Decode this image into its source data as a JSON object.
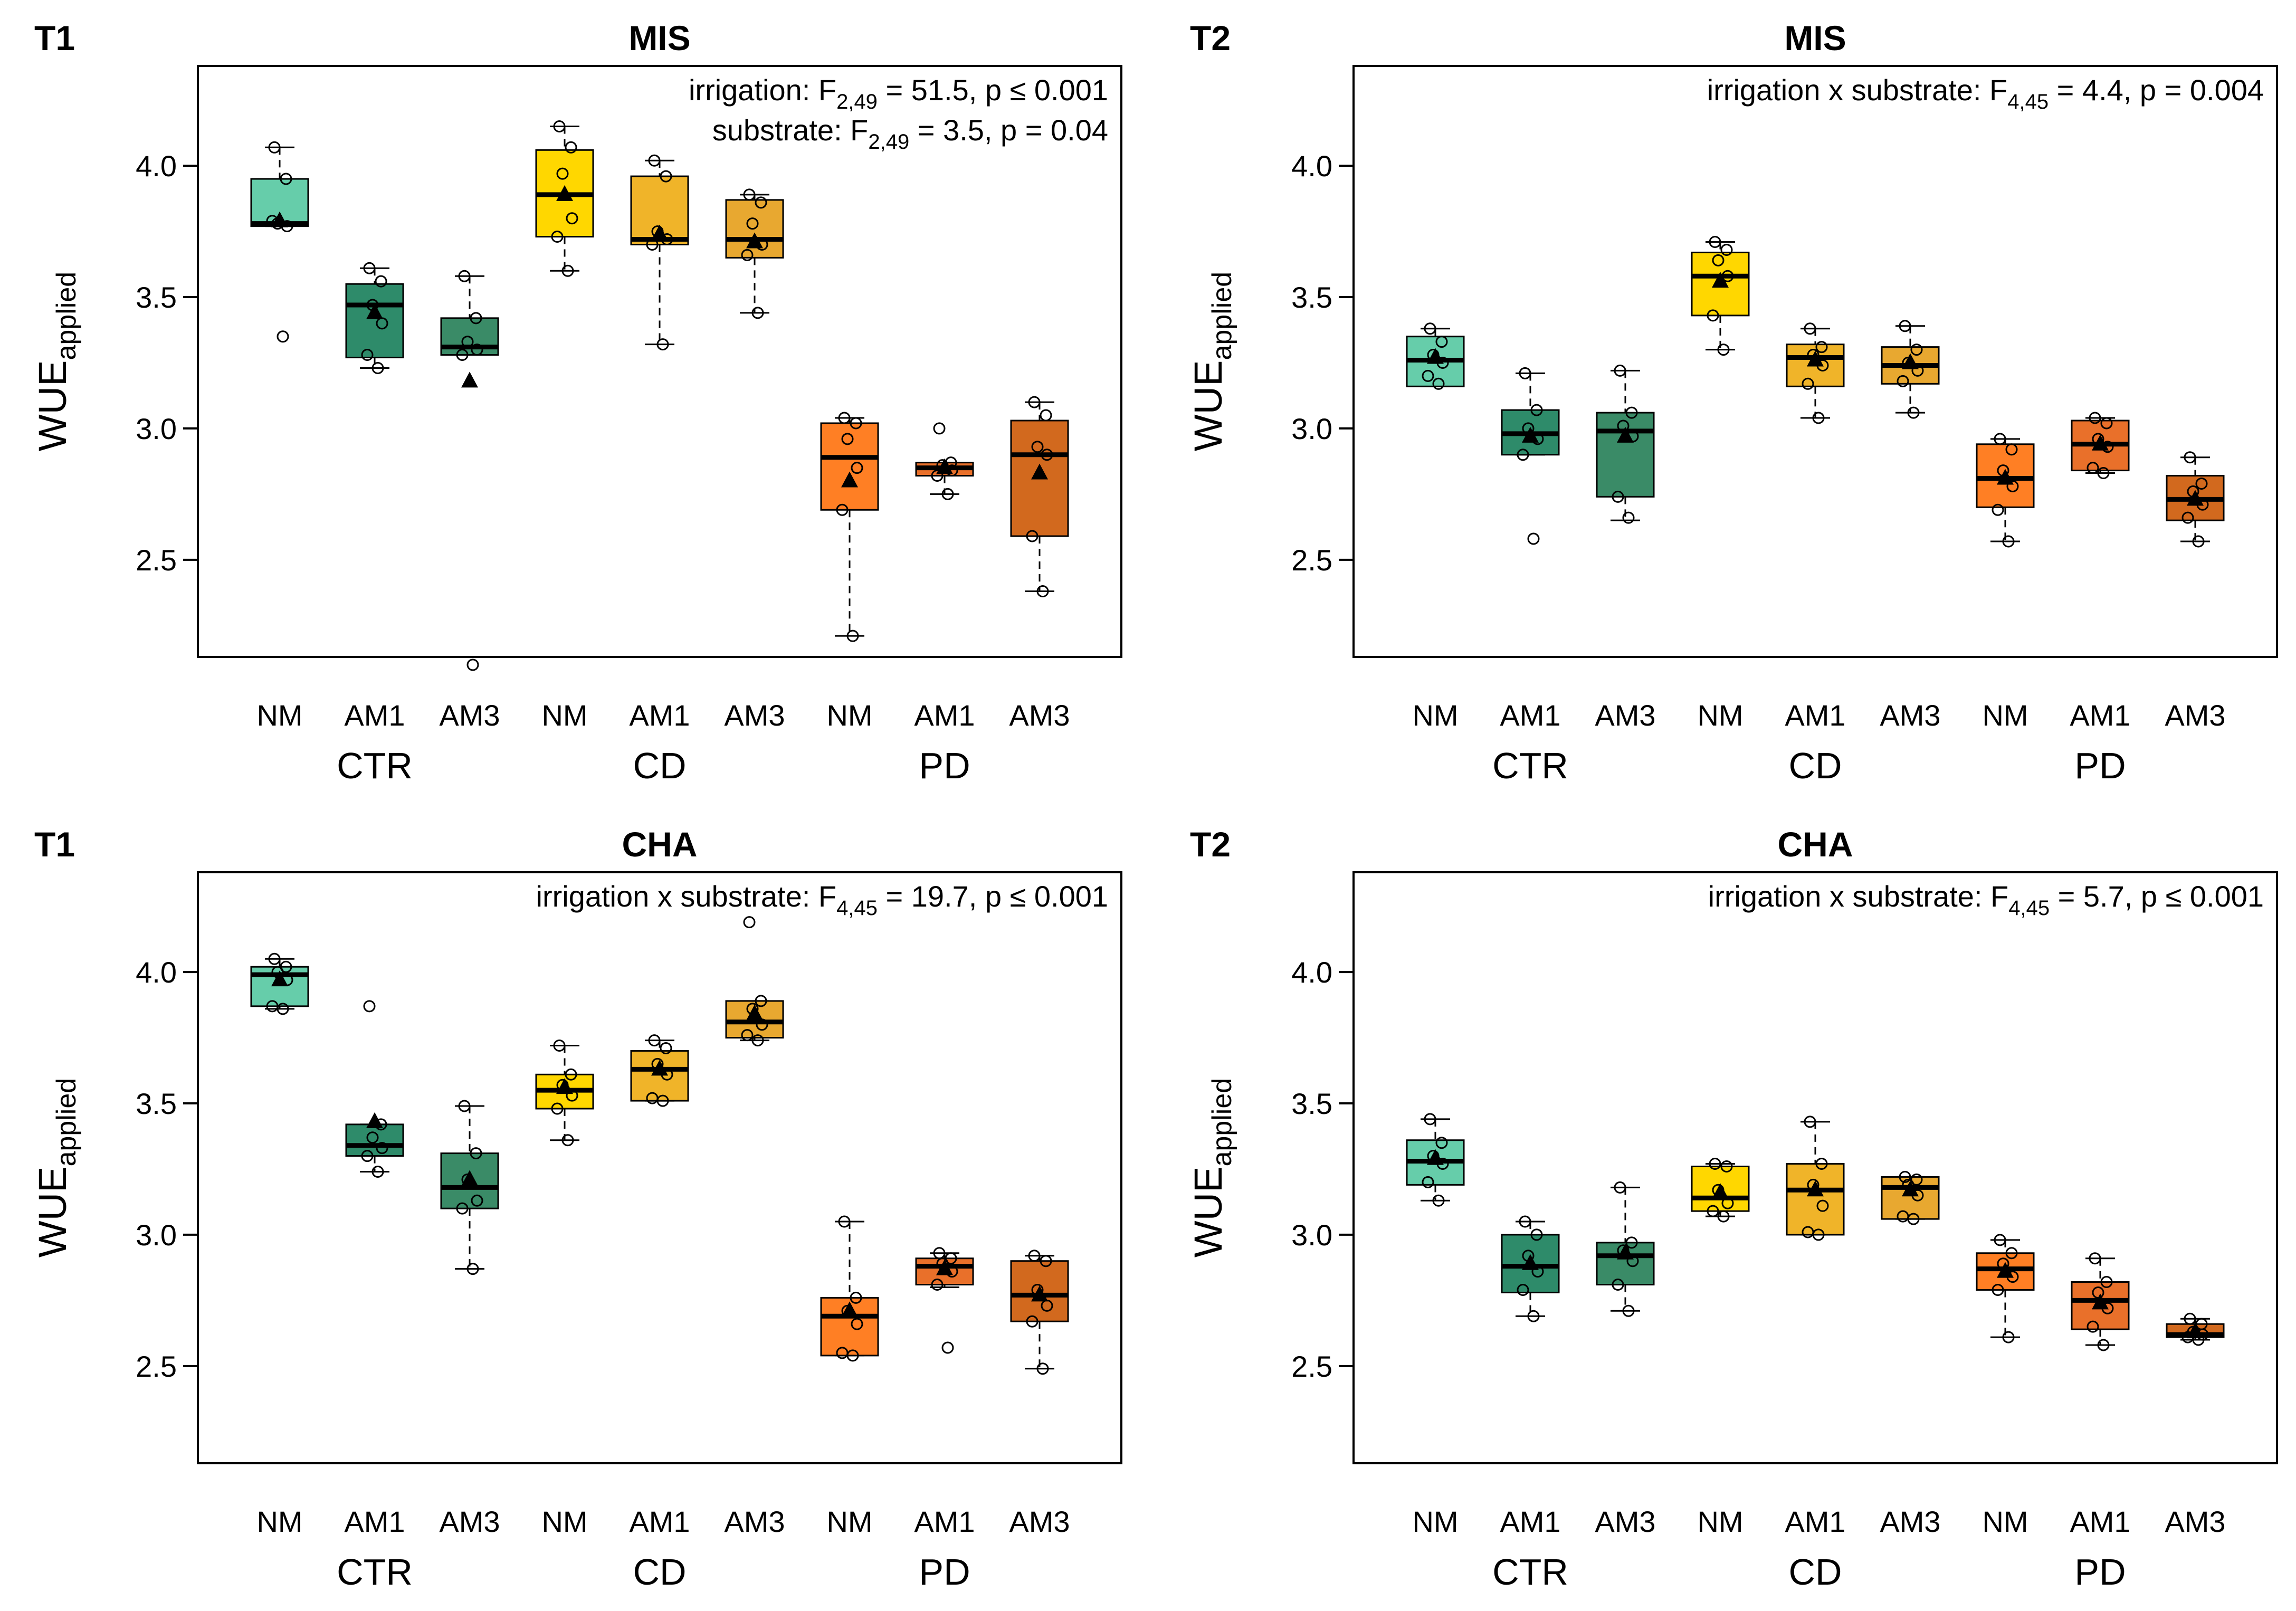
{
  "figure": {
    "ylabel_main": "WUE",
    "ylabel_sub": "applied",
    "x_categories": [
      "NM",
      "AM1",
      "AM3",
      "NM",
      "AM1",
      "AM3",
      "NM",
      "AM1",
      "AM3"
    ],
    "x_groups": [
      "CTR",
      "CD",
      "PD"
    ],
    "yticks": [
      "2.5",
      "3.0",
      "3.5",
      "4.0"
    ],
    "colors": [
      "#66CDAA",
      "#2E8B6A",
      "#3A8B67",
      "#FFD700",
      "#F0B429",
      "#E8A830",
      "#FF7F24",
      "#E9702A",
      "#D2691E"
    ]
  },
  "chart_data": [
    {
      "type": "box",
      "time": "T1",
      "title": "MIS",
      "annotations": [
        {
          "pre": "irrigation: F",
          "sub": "2,49",
          "post": " = 51.5, p ≤ 0.001"
        },
        {
          "pre": "substrate: F",
          "sub": "2,49",
          "post": " = 3.5, p = 0.04"
        }
      ],
      "ylim": [
        2.13,
        4.38
      ],
      "boxes": [
        {
          "group": "CTR",
          "substrate": "NM",
          "min": 3.77,
          "q1": 3.77,
          "median": 3.78,
          "q3": 3.95,
          "max": 4.07,
          "mean": 3.79,
          "points": [
            4.07,
            3.95,
            3.78,
            3.77,
            3.79,
            3.35
          ]
        },
        {
          "group": "CTR",
          "substrate": "AM1",
          "min": 3.23,
          "q1": 3.27,
          "median": 3.47,
          "q3": 3.55,
          "max": 3.61,
          "mean": 3.44,
          "points": [
            3.61,
            3.56,
            3.47,
            3.4,
            3.28,
            3.23
          ]
        },
        {
          "group": "CTR",
          "substrate": "AM3",
          "min": 3.28,
          "q1": 3.28,
          "median": 3.31,
          "q3": 3.42,
          "max": 3.58,
          "mean": 3.18,
          "points": [
            3.58,
            3.42,
            3.33,
            3.3,
            3.28,
            2.1
          ]
        },
        {
          "group": "CD",
          "substrate": "NM",
          "min": 3.6,
          "q1": 3.73,
          "median": 3.89,
          "q3": 4.06,
          "max": 4.15,
          "mean": 3.89,
          "points": [
            4.15,
            4.07,
            3.97,
            3.8,
            3.73,
            3.6
          ]
        },
        {
          "group": "CD",
          "substrate": "AM1",
          "min": 3.32,
          "q1": 3.7,
          "median": 3.72,
          "q3": 3.96,
          "max": 4.02,
          "mean": 3.74,
          "points": [
            4.02,
            3.96,
            3.75,
            3.72,
            3.7,
            3.32
          ]
        },
        {
          "group": "CD",
          "substrate": "AM3",
          "min": 3.44,
          "q1": 3.65,
          "median": 3.72,
          "q3": 3.87,
          "max": 3.89,
          "mean": 3.71,
          "points": [
            3.89,
            3.86,
            3.78,
            3.7,
            3.66,
            3.44
          ]
        },
        {
          "group": "PD",
          "substrate": "NM",
          "min": 2.21,
          "q1": 2.69,
          "median": 2.89,
          "q3": 3.02,
          "max": 3.04,
          "mean": 2.8,
          "points": [
            3.04,
            3.02,
            2.96,
            2.85,
            2.69,
            2.21
          ]
        },
        {
          "group": "PD",
          "substrate": "AM1",
          "min": 2.75,
          "q1": 2.82,
          "median": 2.85,
          "q3": 2.87,
          "max": 2.87,
          "mean": 2.85,
          "points": [
            3.0,
            2.87,
            2.86,
            2.84,
            2.82,
            2.75
          ]
        },
        {
          "group": "PD",
          "substrate": "AM3",
          "min": 2.38,
          "q1": 2.59,
          "median": 2.9,
          "q3": 3.03,
          "max": 3.1,
          "mean": 2.83,
          "points": [
            3.1,
            3.05,
            2.93,
            2.9,
            2.59,
            2.38
          ]
        }
      ]
    },
    {
      "type": "box",
      "time": "T2",
      "title": "MIS",
      "annotations": [
        {
          "pre": "irrigation x substrate: F",
          "sub": "4,45",
          "post": " = 4.4, p = 0.004"
        }
      ],
      "ylim": [
        2.13,
        4.38
      ],
      "boxes": [
        {
          "group": "CTR",
          "substrate": "NM",
          "min": 3.16,
          "q1": 3.16,
          "median": 3.26,
          "q3": 3.35,
          "max": 3.38,
          "mean": 3.27,
          "points": [
            3.38,
            3.33,
            3.28,
            3.25,
            3.2,
            3.17
          ]
        },
        {
          "group": "CTR",
          "substrate": "AM1",
          "min": 2.9,
          "q1": 2.9,
          "median": 2.98,
          "q3": 3.07,
          "max": 3.21,
          "mean": 2.97,
          "points": [
            3.21,
            3.07,
            3.0,
            2.96,
            2.9,
            2.58
          ]
        },
        {
          "group": "CTR",
          "substrate": "AM3",
          "min": 2.65,
          "q1": 2.74,
          "median": 2.99,
          "q3": 3.06,
          "max": 3.22,
          "mean": 2.97,
          "points": [
            3.22,
            3.06,
            3.01,
            2.97,
            2.74,
            2.66
          ]
        },
        {
          "group": "CD",
          "substrate": "NM",
          "min": 3.3,
          "q1": 3.43,
          "median": 3.58,
          "q3": 3.67,
          "max": 3.71,
          "mean": 3.56,
          "points": [
            3.71,
            3.68,
            3.64,
            3.58,
            3.43,
            3.3
          ]
        },
        {
          "group": "CD",
          "substrate": "AM1",
          "min": 3.04,
          "q1": 3.16,
          "median": 3.27,
          "q3": 3.32,
          "max": 3.38,
          "mean": 3.26,
          "points": [
            3.38,
            3.31,
            3.28,
            3.24,
            3.17,
            3.04
          ]
        },
        {
          "group": "CD",
          "substrate": "AM3",
          "min": 3.06,
          "q1": 3.17,
          "median": 3.24,
          "q3": 3.31,
          "max": 3.39,
          "mean": 3.25,
          "points": [
            3.39,
            3.3,
            3.25,
            3.22,
            3.18,
            3.06
          ]
        },
        {
          "group": "PD",
          "substrate": "NM",
          "min": 2.57,
          "q1": 2.7,
          "median": 2.81,
          "q3": 2.94,
          "max": 2.96,
          "mean": 2.81,
          "points": [
            2.96,
            2.92,
            2.84,
            2.78,
            2.69,
            2.57
          ]
        },
        {
          "group": "PD",
          "substrate": "AM1",
          "min": 2.83,
          "q1": 2.84,
          "median": 2.94,
          "q3": 3.03,
          "max": 3.04,
          "mean": 2.94,
          "points": [
            3.04,
            3.02,
            2.96,
            2.93,
            2.85,
            2.83
          ]
        },
        {
          "group": "PD",
          "substrate": "AM3",
          "min": 2.57,
          "q1": 2.65,
          "median": 2.73,
          "q3": 2.82,
          "max": 2.89,
          "mean": 2.73,
          "points": [
            2.89,
            2.79,
            2.76,
            2.71,
            2.66,
            2.57
          ]
        }
      ]
    },
    {
      "type": "box",
      "time": "T1",
      "title": "CHA",
      "annotations": [
        {
          "pre": "irrigation x substrate: F",
          "sub": "4,45",
          "post": " = 19.7, p ≤ 0.001"
        }
      ],
      "ylim": [
        2.13,
        4.38
      ],
      "boxes": [
        {
          "group": "CTR",
          "substrate": "NM",
          "min": 3.86,
          "q1": 3.87,
          "median": 3.99,
          "q3": 4.02,
          "max": 4.05,
          "mean": 3.97,
          "points": [
            4.05,
            4.02,
            4.0,
            3.97,
            3.87,
            3.86
          ]
        },
        {
          "group": "CTR",
          "substrate": "AM1",
          "min": 3.24,
          "q1": 3.3,
          "median": 3.34,
          "q3": 3.42,
          "max": 3.42,
          "mean": 3.43,
          "points": [
            3.87,
            3.42,
            3.37,
            3.33,
            3.3,
            3.24
          ]
        },
        {
          "group": "CTR",
          "substrate": "AM3",
          "min": 2.87,
          "q1": 3.1,
          "median": 3.18,
          "q3": 3.31,
          "max": 3.49,
          "mean": 3.21,
          "points": [
            3.49,
            3.31,
            3.21,
            3.13,
            3.1,
            2.87
          ]
        },
        {
          "group": "CD",
          "substrate": "NM",
          "min": 3.36,
          "q1": 3.48,
          "median": 3.55,
          "q3": 3.61,
          "max": 3.72,
          "mean": 3.56,
          "points": [
            3.72,
            3.61,
            3.57,
            3.53,
            3.48,
            3.36
          ]
        },
        {
          "group": "CD",
          "substrate": "AM1",
          "min": 3.51,
          "q1": 3.51,
          "median": 3.63,
          "q3": 3.7,
          "max": 3.74,
          "mean": 3.63,
          "points": [
            3.74,
            3.71,
            3.65,
            3.61,
            3.52,
            3.51
          ]
        },
        {
          "group": "CD",
          "substrate": "AM3",
          "min": 3.74,
          "q1": 3.75,
          "median": 3.81,
          "q3": 3.89,
          "max": 3.89,
          "mean": 3.84,
          "points": [
            4.19,
            3.89,
            3.86,
            3.8,
            3.76,
            3.74
          ]
        },
        {
          "group": "PD",
          "substrate": "NM",
          "min": 2.54,
          "q1": 2.54,
          "median": 2.69,
          "q3": 2.76,
          "max": 3.05,
          "mean": 2.71,
          "points": [
            3.05,
            2.76,
            2.71,
            2.66,
            2.55,
            2.54
          ]
        },
        {
          "group": "PD",
          "substrate": "AM1",
          "min": 2.8,
          "q1": 2.81,
          "median": 2.88,
          "q3": 2.91,
          "max": 2.93,
          "mean": 2.87,
          "points": [
            2.93,
            2.91,
            2.89,
            2.86,
            2.81,
            2.57
          ]
        },
        {
          "group": "PD",
          "substrate": "AM3",
          "min": 2.49,
          "q1": 2.67,
          "median": 2.77,
          "q3": 2.9,
          "max": 2.92,
          "mean": 2.77,
          "points": [
            2.92,
            2.9,
            2.79,
            2.73,
            2.67,
            2.49
          ]
        }
      ]
    },
    {
      "type": "box",
      "time": "T2",
      "title": "CHA",
      "annotations": [
        {
          "pre": "irrigation x substrate: F",
          "sub": "4,45",
          "post": " = 5.7, p ≤ 0.001"
        }
      ],
      "ylim": [
        2.13,
        4.38
      ],
      "boxes": [
        {
          "group": "CTR",
          "substrate": "NM",
          "min": 3.13,
          "q1": 3.19,
          "median": 3.28,
          "q3": 3.36,
          "max": 3.44,
          "mean": 3.29,
          "points": [
            3.44,
            3.35,
            3.3,
            3.27,
            3.2,
            3.13
          ]
        },
        {
          "group": "CTR",
          "substrate": "AM1",
          "min": 2.69,
          "q1": 2.78,
          "median": 2.88,
          "q3": 3.0,
          "max": 3.05,
          "mean": 2.89,
          "points": [
            3.05,
            3.0,
            2.92,
            2.86,
            2.79,
            2.69
          ]
        },
        {
          "group": "CTR",
          "substrate": "AM3",
          "min": 2.71,
          "q1": 2.81,
          "median": 2.92,
          "q3": 2.97,
          "max": 3.18,
          "mean": 2.93,
          "points": [
            3.18,
            2.97,
            2.94,
            2.9,
            2.81,
            2.71
          ]
        },
        {
          "group": "CD",
          "substrate": "NM",
          "min": 3.07,
          "q1": 3.09,
          "median": 3.14,
          "q3": 3.26,
          "max": 3.27,
          "mean": 3.16,
          "points": [
            3.27,
            3.26,
            3.17,
            3.12,
            3.09,
            3.07
          ]
        },
        {
          "group": "CD",
          "substrate": "AM1",
          "min": 3.0,
          "q1": 3.0,
          "median": 3.17,
          "q3": 3.27,
          "max": 3.43,
          "mean": 3.17,
          "points": [
            3.43,
            3.27,
            3.19,
            3.11,
            3.01,
            3.0
          ]
        },
        {
          "group": "CD",
          "substrate": "AM3",
          "min": 3.06,
          "q1": 3.06,
          "median": 3.18,
          "q3": 3.22,
          "max": 3.22,
          "mean": 3.17,
          "points": [
            3.22,
            3.21,
            3.19,
            3.15,
            3.07,
            3.06
          ]
        },
        {
          "group": "PD",
          "substrate": "NM",
          "min": 2.61,
          "q1": 2.79,
          "median": 2.87,
          "q3": 2.93,
          "max": 2.98,
          "mean": 2.86,
          "points": [
            2.98,
            2.93,
            2.89,
            2.84,
            2.79,
            2.61
          ]
        },
        {
          "group": "PD",
          "substrate": "AM1",
          "min": 2.58,
          "q1": 2.64,
          "median": 2.75,
          "q3": 2.82,
          "max": 2.91,
          "mean": 2.74,
          "points": [
            2.91,
            2.82,
            2.78,
            2.72,
            2.65,
            2.58
          ]
        },
        {
          "group": "PD",
          "substrate": "AM3",
          "min": 2.6,
          "q1": 2.61,
          "median": 2.62,
          "q3": 2.66,
          "max": 2.68,
          "mean": 2.63,
          "points": [
            2.68,
            2.66,
            2.63,
            2.62,
            2.61,
            2.6
          ]
        }
      ]
    }
  ]
}
